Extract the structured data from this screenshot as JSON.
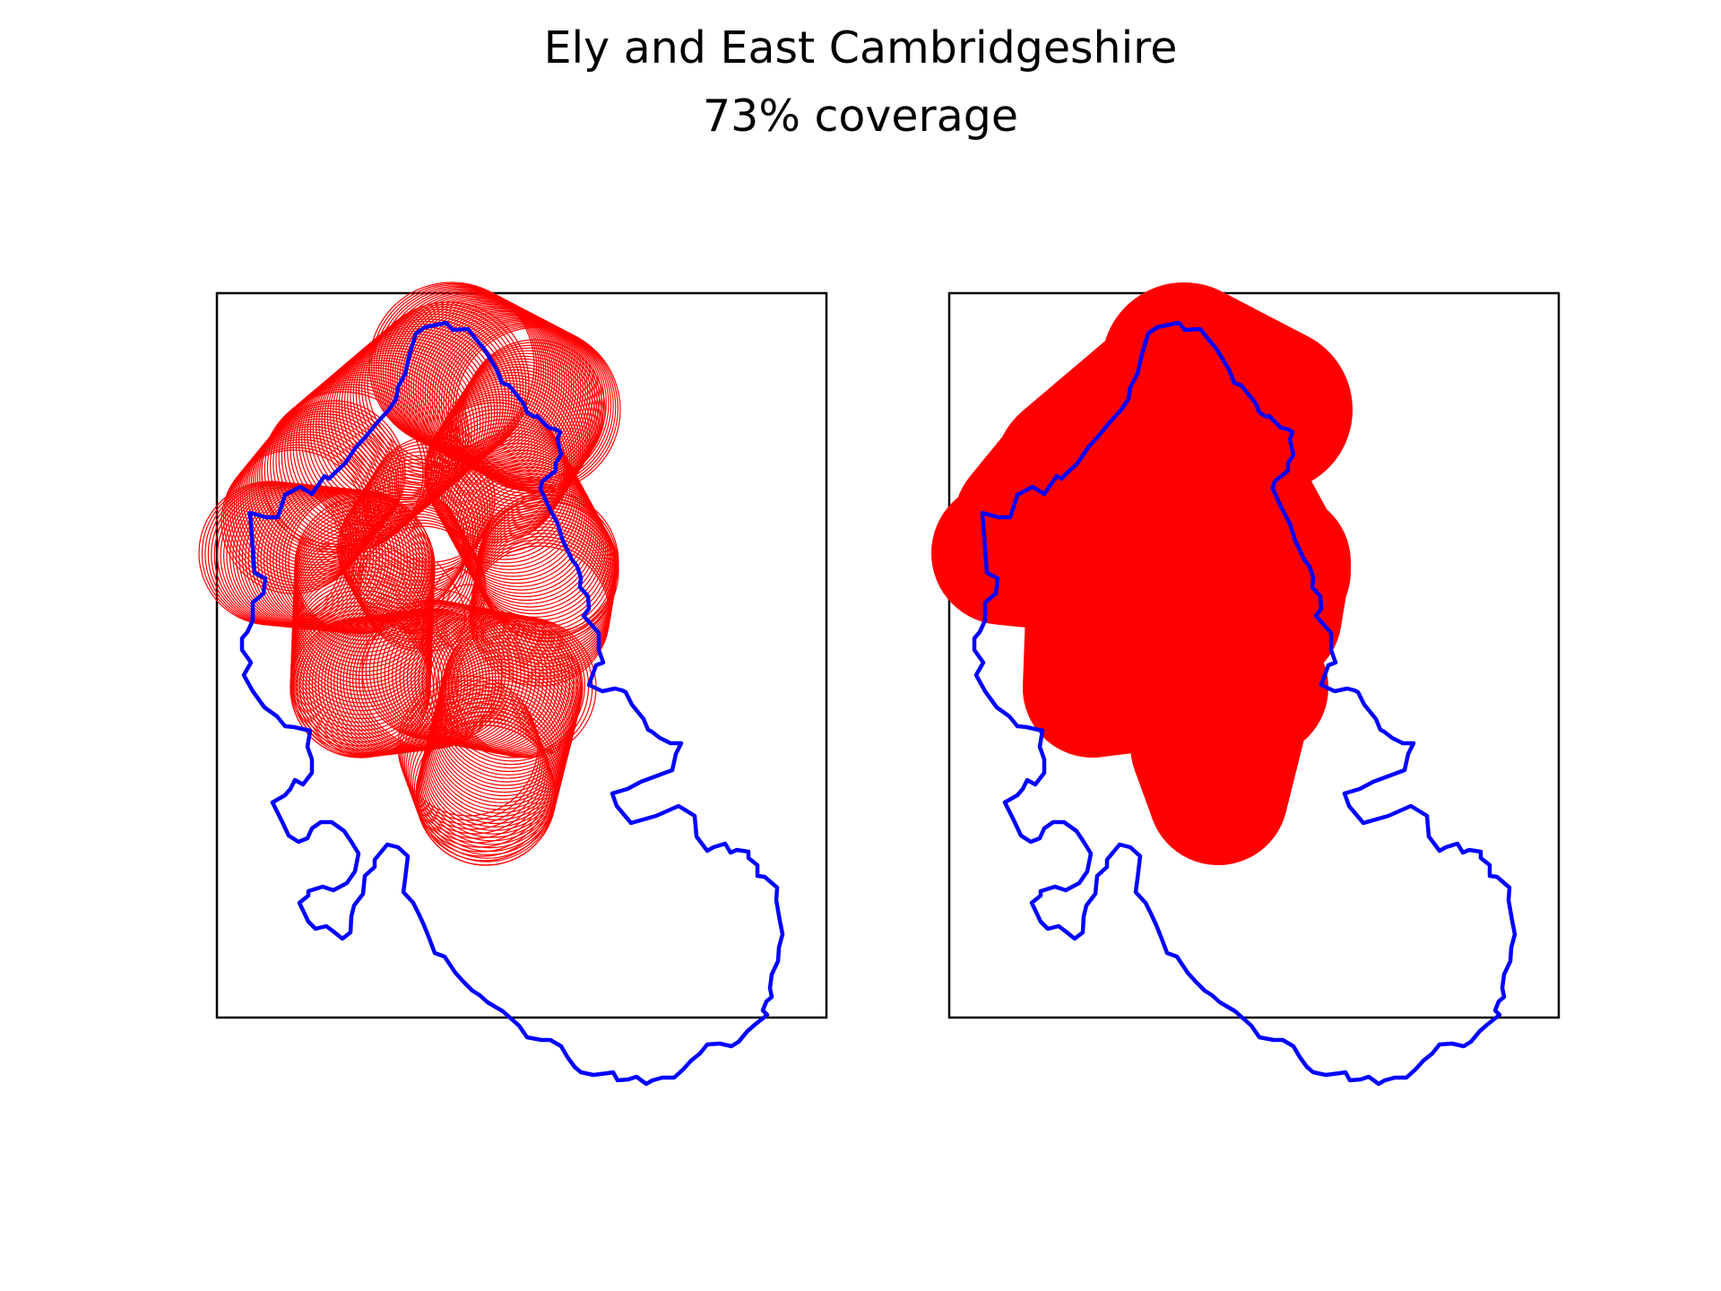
{
  "figure": {
    "title": "Ely and East Cambridgeshire",
    "subtitle": "73% coverage"
  },
  "colors": {
    "boundary": "#0000ff",
    "coverage": "#ff0000",
    "frame": "#000000",
    "background": "#ffffff"
  },
  "map_data": {
    "panels": [
      {
        "name": "individual-circles",
        "style": "outline"
      },
      {
        "name": "union-coverage",
        "style": "filled"
      }
    ]
  }
}
